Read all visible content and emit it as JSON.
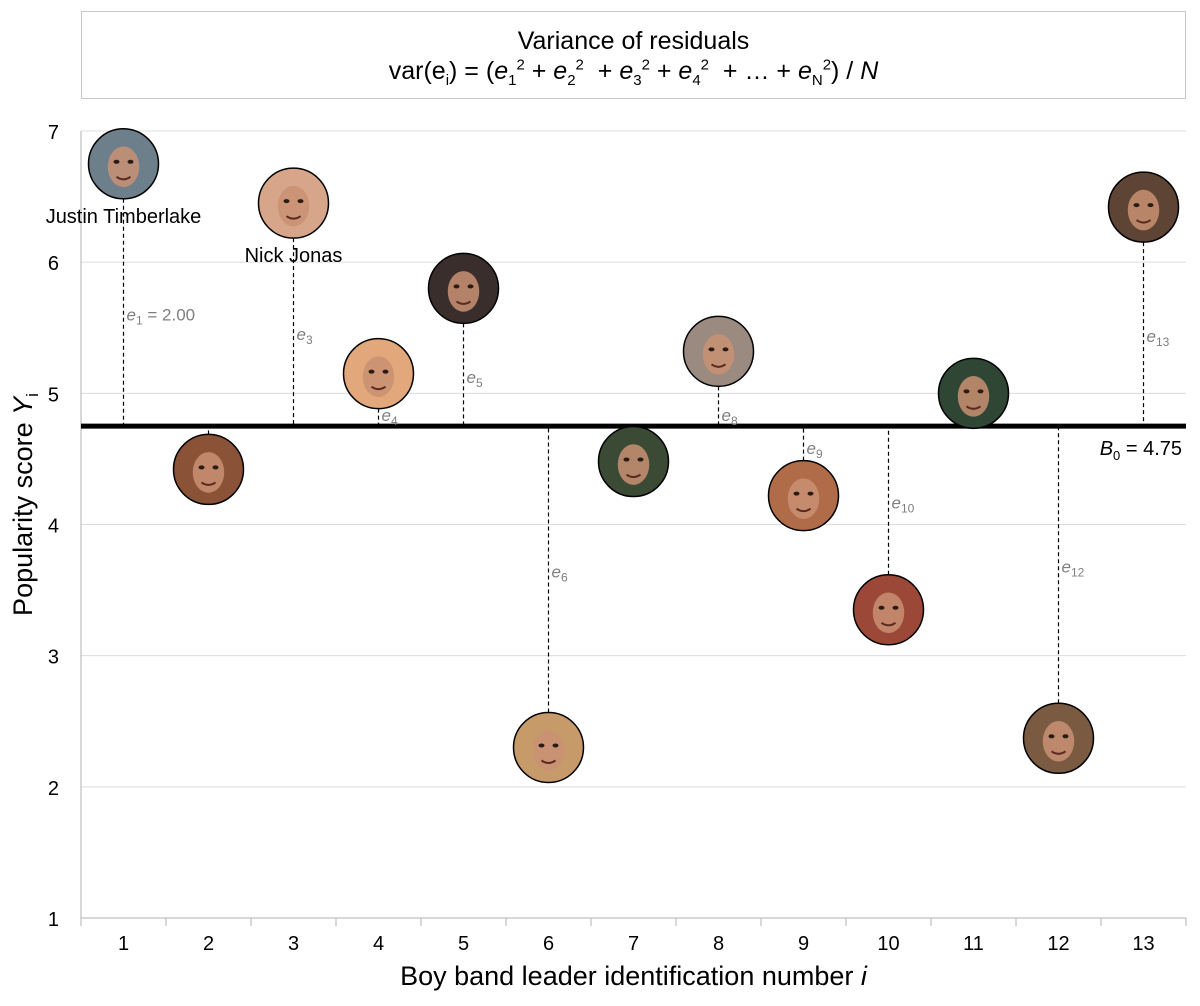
{
  "chart_data": {
    "type": "scatter",
    "title_line1": "Variance of residuals",
    "formula": {
      "lhs": "var(e",
      "lhs_sub": "i",
      "lhs_close": ") = (",
      "terms": [
        "e1",
        "e2",
        "e3",
        "e4"
      ],
      "ellipsis": "…",
      "last_term": "eN",
      "divisor": "N"
    },
    "xlabel": "Boy band leader identification number",
    "xlabel_var": "i",
    "ylabel": "Popularity score",
    "ylabel_var": "Y",
    "ylabel_sub": "i",
    "ylim": [
      1,
      7
    ],
    "yticks": [
      1,
      2,
      3,
      4,
      5,
      6,
      7
    ],
    "x": [
      1,
      2,
      3,
      4,
      5,
      6,
      7,
      8,
      9,
      10,
      11,
      12,
      13
    ],
    "y": [
      6.75,
      4.42,
      6.45,
      5.15,
      5.8,
      2.3,
      4.48,
      5.32,
      4.22,
      3.35,
      5.0,
      2.37,
      6.42
    ],
    "point_colors": [
      "#6e7f8c",
      "#8a5236",
      "#d6a58a",
      "#e3a77c",
      "#3a2e2c",
      "#c79a6a",
      "#3b4a35",
      "#9a8a80",
      "#b06c48",
      "#9c4838",
      "#2f4634",
      "#7a5a40",
      "#5e4434"
    ],
    "baseline": {
      "value": 4.75,
      "label_var": "B",
      "label_sub": "0",
      "label_rest": " = 4.75"
    },
    "residual_labels": [
      {
        "i": 1,
        "sub": "1",
        "extra": " = 2.00"
      },
      {
        "i": 3,
        "sub": "3",
        "extra": ""
      },
      {
        "i": 4,
        "sub": "4",
        "extra": ""
      },
      {
        "i": 5,
        "sub": "5",
        "extra": ""
      },
      {
        "i": 6,
        "sub": "6",
        "extra": ""
      },
      {
        "i": 8,
        "sub": "8",
        "extra": ""
      },
      {
        "i": 9,
        "sub": "9",
        "extra": ""
      },
      {
        "i": 10,
        "sub": "10",
        "extra": ""
      },
      {
        "i": 12,
        "sub": "12",
        "extra": ""
      },
      {
        "i": 13,
        "sub": "13",
        "extra": ""
      }
    ],
    "annotations": [
      {
        "i": 1,
        "text": "Justin Timberlake"
      },
      {
        "i": 3,
        "text": "Nick Jonas"
      }
    ],
    "grid": true
  }
}
